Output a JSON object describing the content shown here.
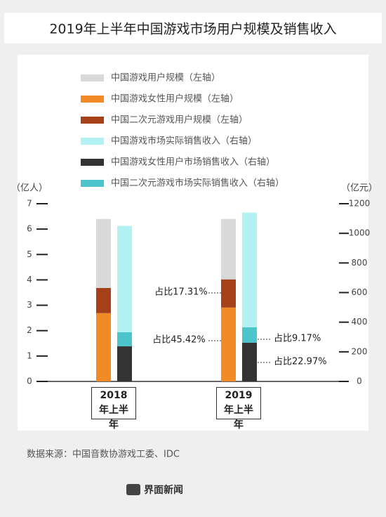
{
  "chart_data": {
    "type": "bar",
    "title": "2019年上半年中国游戏市场用户规模及销售收入",
    "ylabel": "（亿人）",
    "y2label": "（亿元）",
    "categories": [
      "2018年上半年",
      "2019年上半年"
    ],
    "series": [
      {
        "name": "中国游戏用户规模（左轴）",
        "color": "#d9d9d9",
        "axis": "y",
        "values": [
          2.72,
          2.38
        ]
      },
      {
        "name": "中国游戏女性用户规模（左轴）",
        "color": "#f28a25",
        "axis": "y",
        "values": [
          2.69,
          2.91
        ]
      },
      {
        "name": "中国二次元游戏用户规模（左轴）",
        "color": "#a5401a",
        "axis": "y",
        "values": [
          0.99,
          1.11
        ]
      },
      {
        "name": "中国游戏市场实际销售收入（右轴）",
        "color": "#b3f2f2",
        "axis": "y2",
        "values": [
          718,
          774
        ]
      },
      {
        "name": "中国游戏女性用户市场销售收入（右轴）",
        "color": "#333333",
        "axis": "y2",
        "values": [
          237,
          262
        ]
      },
      {
        "name": "中国二次元游戏市场实际销售收入（右轴）",
        "color": "#4cc4cc",
        "axis": "y2",
        "values": [
          95,
          104
        ]
      }
    ],
    "ylim": [
      0,
      7
    ],
    "yticks": [
      0,
      1,
      2,
      3,
      4,
      5,
      6,
      7
    ],
    "y2lim": [
      0,
      1200
    ],
    "y2ticks": [
      0,
      200,
      400,
      600,
      800,
      1000,
      1200
    ],
    "annotations": [
      "占比17.31%",
      "占比45.42%",
      "占比9.17%",
      "占比22.97%"
    ],
    "source": "数据来源：中国音数协游戏工委、IDC",
    "footer": "界面新闻"
  }
}
